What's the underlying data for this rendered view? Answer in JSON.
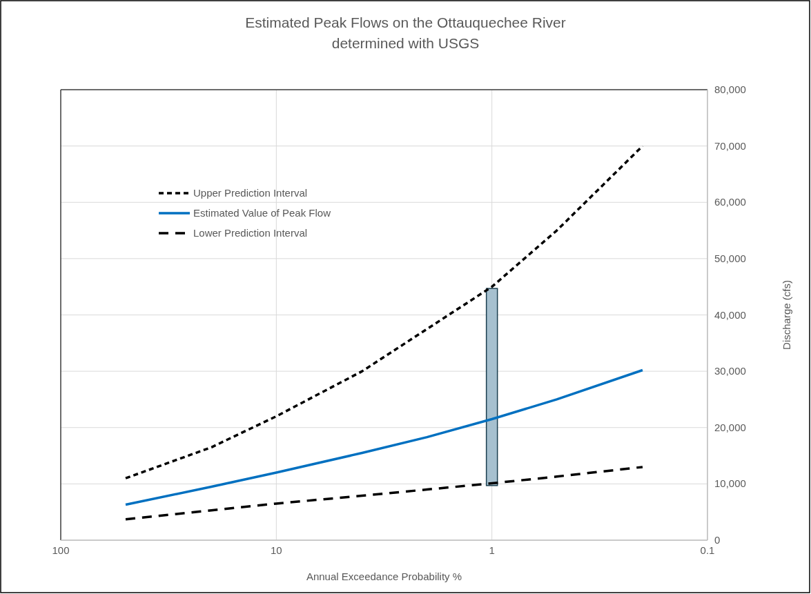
{
  "chart_data": {
    "type": "line",
    "title": "Estimated Peak Flows on the Ottauquechee River\ndetermined with USGS",
    "xlabel": "Annual Exceedance Probability %",
    "ylabel": "Discharge (cfs)",
    "log": "x",
    "xlim": [
      100,
      0.1
    ],
    "xticks": [
      100,
      10,
      1,
      0.1
    ],
    "ylim": [
      0,
      80000
    ],
    "yticks": [
      {
        "value": 0,
        "label": "0"
      },
      {
        "value": 10000,
        "label": "10,000"
      },
      {
        "value": 20000,
        "label": "20,000"
      },
      {
        "value": 30000,
        "label": "30,000"
      },
      {
        "value": 40000,
        "label": "40,000"
      },
      {
        "value": 50000,
        "label": "50,000"
      },
      {
        "value": 60000,
        "label": "60,000"
      },
      {
        "value": 70000,
        "label": "70,000"
      },
      {
        "value": 80000,
        "label": "80,000"
      }
    ],
    "grid": true,
    "legend": "top left",
    "x": [
      50,
      20,
      10,
      4,
      2,
      1,
      0.5,
      0.2
    ],
    "series": [
      {
        "name": "Upper Prediction Interval",
        "color": "#000000",
        "line_style": "dashed",
        "values": [
          11000,
          16500,
          22000,
          30000,
          37500,
          45000,
          55000,
          70000
        ]
      },
      {
        "name": "Estimated Value of Peak Flow",
        "color": "#0070c0",
        "line_style": "solid",
        "values": [
          6300,
          9500,
          12000,
          15500,
          18300,
          21500,
          25000,
          30200
        ]
      },
      {
        "name": "Lower Prediction Interval",
        "color": "#000000",
        "line_style": "dashed",
        "values": [
          3700,
          5300,
          6500,
          7900,
          9000,
          10100,
          11300,
          13000
        ]
      },
      {
        "type": "bar",
        "color": "#a6c0cf",
        "x": [
          1
        ],
        "base": [
          9700
        ],
        "values": [
          35000
        ]
      }
    ]
  }
}
